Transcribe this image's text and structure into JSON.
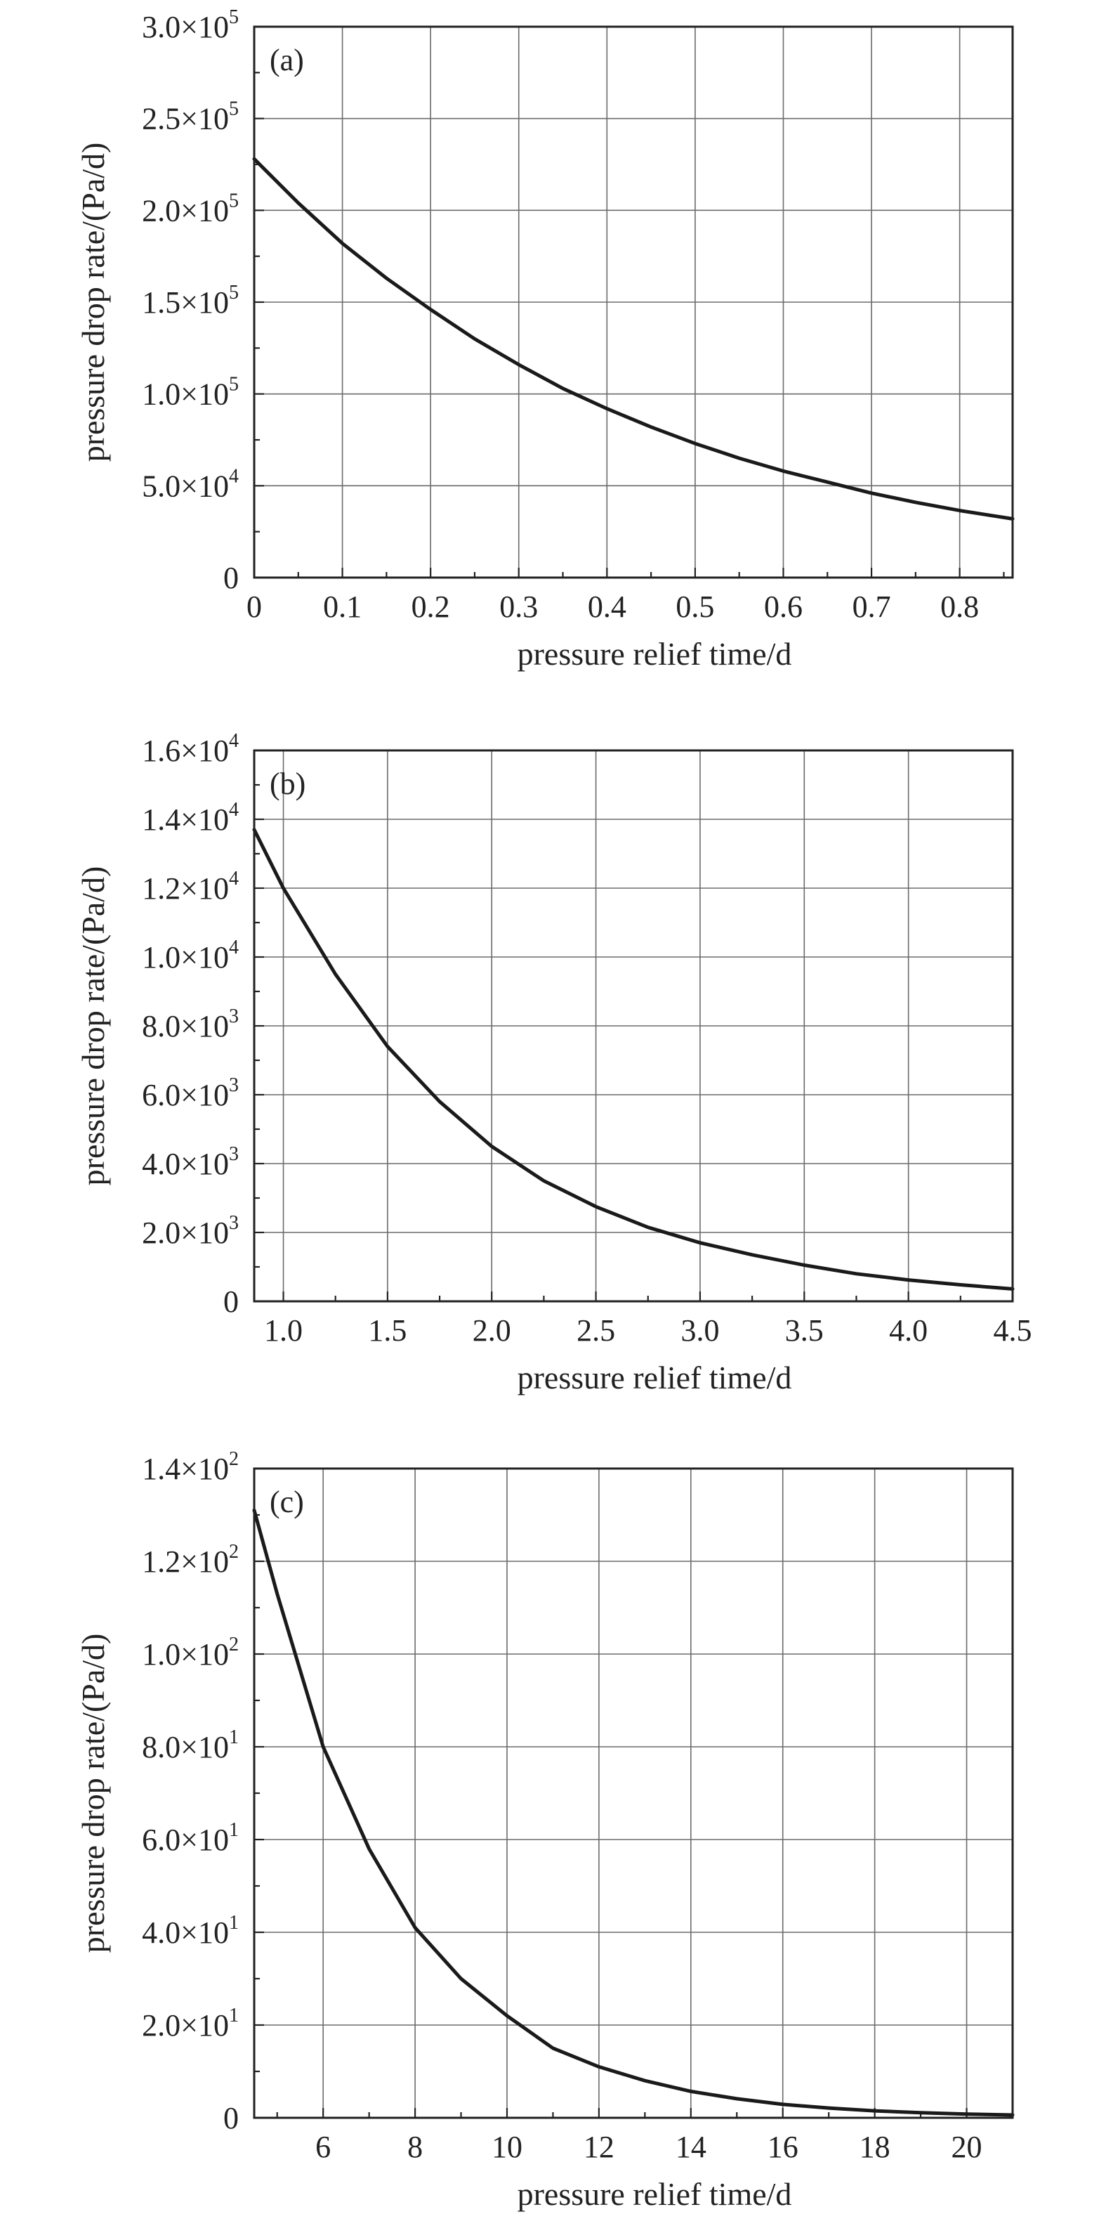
{
  "chart_data": [
    {
      "panel": "(a)",
      "type": "line",
      "xlabel": "pressure relief time/d",
      "ylabel": "pressure drop rate/(Pa/d)",
      "xlim": [
        0,
        0.86
      ],
      "ylim": [
        0,
        300000
      ],
      "x_ticks": [
        {
          "value": 0,
          "label": "0"
        },
        {
          "value": 0.1,
          "label": "0.1"
        },
        {
          "value": 0.2,
          "label": "0.2"
        },
        {
          "value": 0.3,
          "label": "0.3"
        },
        {
          "value": 0.4,
          "label": "0.4"
        },
        {
          "value": 0.5,
          "label": "0.5"
        },
        {
          "value": 0.6,
          "label": "0.6"
        },
        {
          "value": 0.7,
          "label": "0.7"
        },
        {
          "value": 0.8,
          "label": "0.8"
        }
      ],
      "y_ticks": [
        {
          "value": 0,
          "mantissa": "0",
          "exp": ""
        },
        {
          "value": 50000,
          "mantissa": "5.0×10",
          "exp": "4"
        },
        {
          "value": 100000,
          "mantissa": "1.0×10",
          "exp": "5"
        },
        {
          "value": 150000,
          "mantissa": "1.5×10",
          "exp": "5"
        },
        {
          "value": 200000,
          "mantissa": "2.0×10",
          "exp": "5"
        },
        {
          "value": 250000,
          "mantissa": "2.5×10",
          "exp": "5"
        },
        {
          "value": 300000,
          "mantissa": "3.0×10",
          "exp": "5"
        }
      ],
      "grid": true,
      "series": [
        {
          "x": [
            0,
            0.05,
            0.1,
            0.15,
            0.2,
            0.25,
            0.3,
            0.35,
            0.4,
            0.45,
            0.5,
            0.55,
            0.6,
            0.65,
            0.7,
            0.75,
            0.8,
            0.86
          ],
          "y": [
            228000,
            204000,
            182000,
            163000,
            146000,
            130000,
            116000,
            103000,
            92000,
            82000,
            73000,
            65000,
            58000,
            52000,
            46000,
            41000,
            36500,
            32000
          ]
        }
      ]
    },
    {
      "panel": "(b)",
      "type": "line",
      "xlabel": "pressure relief time/d",
      "ylabel": "pressure drop rate/(Pa/d)",
      "xlim": [
        0.86,
        4.5
      ],
      "ylim": [
        0,
        16000
      ],
      "x_ticks": [
        {
          "value": 1.0,
          "label": "1.0"
        },
        {
          "value": 1.5,
          "label": "1.5"
        },
        {
          "value": 2.0,
          "label": "2.0"
        },
        {
          "value": 2.5,
          "label": "2.5"
        },
        {
          "value": 3.0,
          "label": "3.0"
        },
        {
          "value": 3.5,
          "label": "3.5"
        },
        {
          "value": 4.0,
          "label": "4.0"
        },
        {
          "value": 4.5,
          "label": "4.5"
        }
      ],
      "y_ticks": [
        {
          "value": 0,
          "mantissa": "0",
          "exp": ""
        },
        {
          "value": 2000,
          "mantissa": "2.0×10",
          "exp": "3"
        },
        {
          "value": 4000,
          "mantissa": "4.0×10",
          "exp": "3"
        },
        {
          "value": 6000,
          "mantissa": "6.0×10",
          "exp": "3"
        },
        {
          "value": 8000,
          "mantissa": "8.0×10",
          "exp": "3"
        },
        {
          "value": 10000,
          "mantissa": "1.0×10",
          "exp": "4"
        },
        {
          "value": 12000,
          "mantissa": "1.2×10",
          "exp": "4"
        },
        {
          "value": 14000,
          "mantissa": "1.4×10",
          "exp": "4"
        },
        {
          "value": 16000,
          "mantissa": "1.6×10",
          "exp": "4"
        }
      ],
      "grid": true,
      "series": [
        {
          "x": [
            0.86,
            1.0,
            1.25,
            1.5,
            1.75,
            2.0,
            2.25,
            2.5,
            2.75,
            3.0,
            3.25,
            3.5,
            3.75,
            4.0,
            4.25,
            4.5
          ],
          "y": [
            13700,
            12000,
            9500,
            7400,
            5800,
            4500,
            3500,
            2750,
            2150,
            1700,
            1350,
            1050,
            800,
            620,
            480,
            360
          ]
        }
      ]
    },
    {
      "panel": "(c)",
      "type": "line",
      "xlabel": "pressure relief time/d",
      "ylabel": "pressure drop rate/(Pa/d)",
      "xlim": [
        4.5,
        21
      ],
      "ylim": [
        0,
        140
      ],
      "x_ticks": [
        {
          "value": 6,
          "label": "6"
        },
        {
          "value": 8,
          "label": "8"
        },
        {
          "value": 10,
          "label": "10"
        },
        {
          "value": 12,
          "label": "12"
        },
        {
          "value": 14,
          "label": "14"
        },
        {
          "value": 16,
          "label": "16"
        },
        {
          "value": 18,
          "label": "18"
        },
        {
          "value": 20,
          "label": "20"
        }
      ],
      "y_ticks": [
        {
          "value": 0,
          "mantissa": "0",
          "exp": ""
        },
        {
          "value": 20,
          "mantissa": "2.0×10",
          "exp": "1"
        },
        {
          "value": 40,
          "mantissa": "4.0×10",
          "exp": "1"
        },
        {
          "value": 60,
          "mantissa": "6.0×10",
          "exp": "1"
        },
        {
          "value": 80,
          "mantissa": "8.0×10",
          "exp": "1"
        },
        {
          "value": 100,
          "mantissa": "1.0×10",
          "exp": "2"
        },
        {
          "value": 120,
          "mantissa": "1.2×10",
          "exp": "2"
        },
        {
          "value": 140,
          "mantissa": "1.4×10",
          "exp": "2"
        }
      ],
      "grid": true,
      "series": [
        {
          "x": [
            4.5,
            5,
            6,
            7,
            8,
            9,
            10,
            11,
            12,
            13,
            14,
            15,
            16,
            17,
            18,
            19,
            20,
            21
          ],
          "y": [
            131,
            113,
            80,
            58,
            41,
            30,
            22,
            15,
            11,
            8,
            5.7,
            4.1,
            2.9,
            2.1,
            1.5,
            1.1,
            0.8,
            0.6
          ]
        }
      ]
    }
  ]
}
